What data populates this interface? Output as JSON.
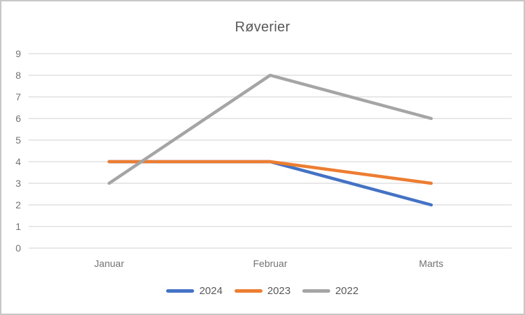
{
  "chart_data": {
    "type": "line",
    "title": "Røverier",
    "categories": [
      "Januar",
      "Februar",
      "Marts"
    ],
    "series": [
      {
        "name": "2024",
        "values": [
          4,
          4,
          2
        ],
        "color": "#4472C4"
      },
      {
        "name": "2023",
        "values": [
          4,
          4,
          3
        ],
        "color": "#ED7D31"
      },
      {
        "name": "2022",
        "values": [
          3,
          8,
          6
        ],
        "color": "#A5A5A5"
      }
    ],
    "ylim": [
      0,
      9
    ],
    "y_ticks": [
      0,
      1,
      2,
      3,
      4,
      5,
      6,
      7,
      8,
      9
    ],
    "grid": "horizontal",
    "legend_position": "bottom",
    "colors": {
      "gridline": "#D9D9D9",
      "axis_text": "#737373",
      "title_text": "#595959",
      "legend_text": "#595959",
      "frame_border": "#C8C6C6"
    }
  }
}
